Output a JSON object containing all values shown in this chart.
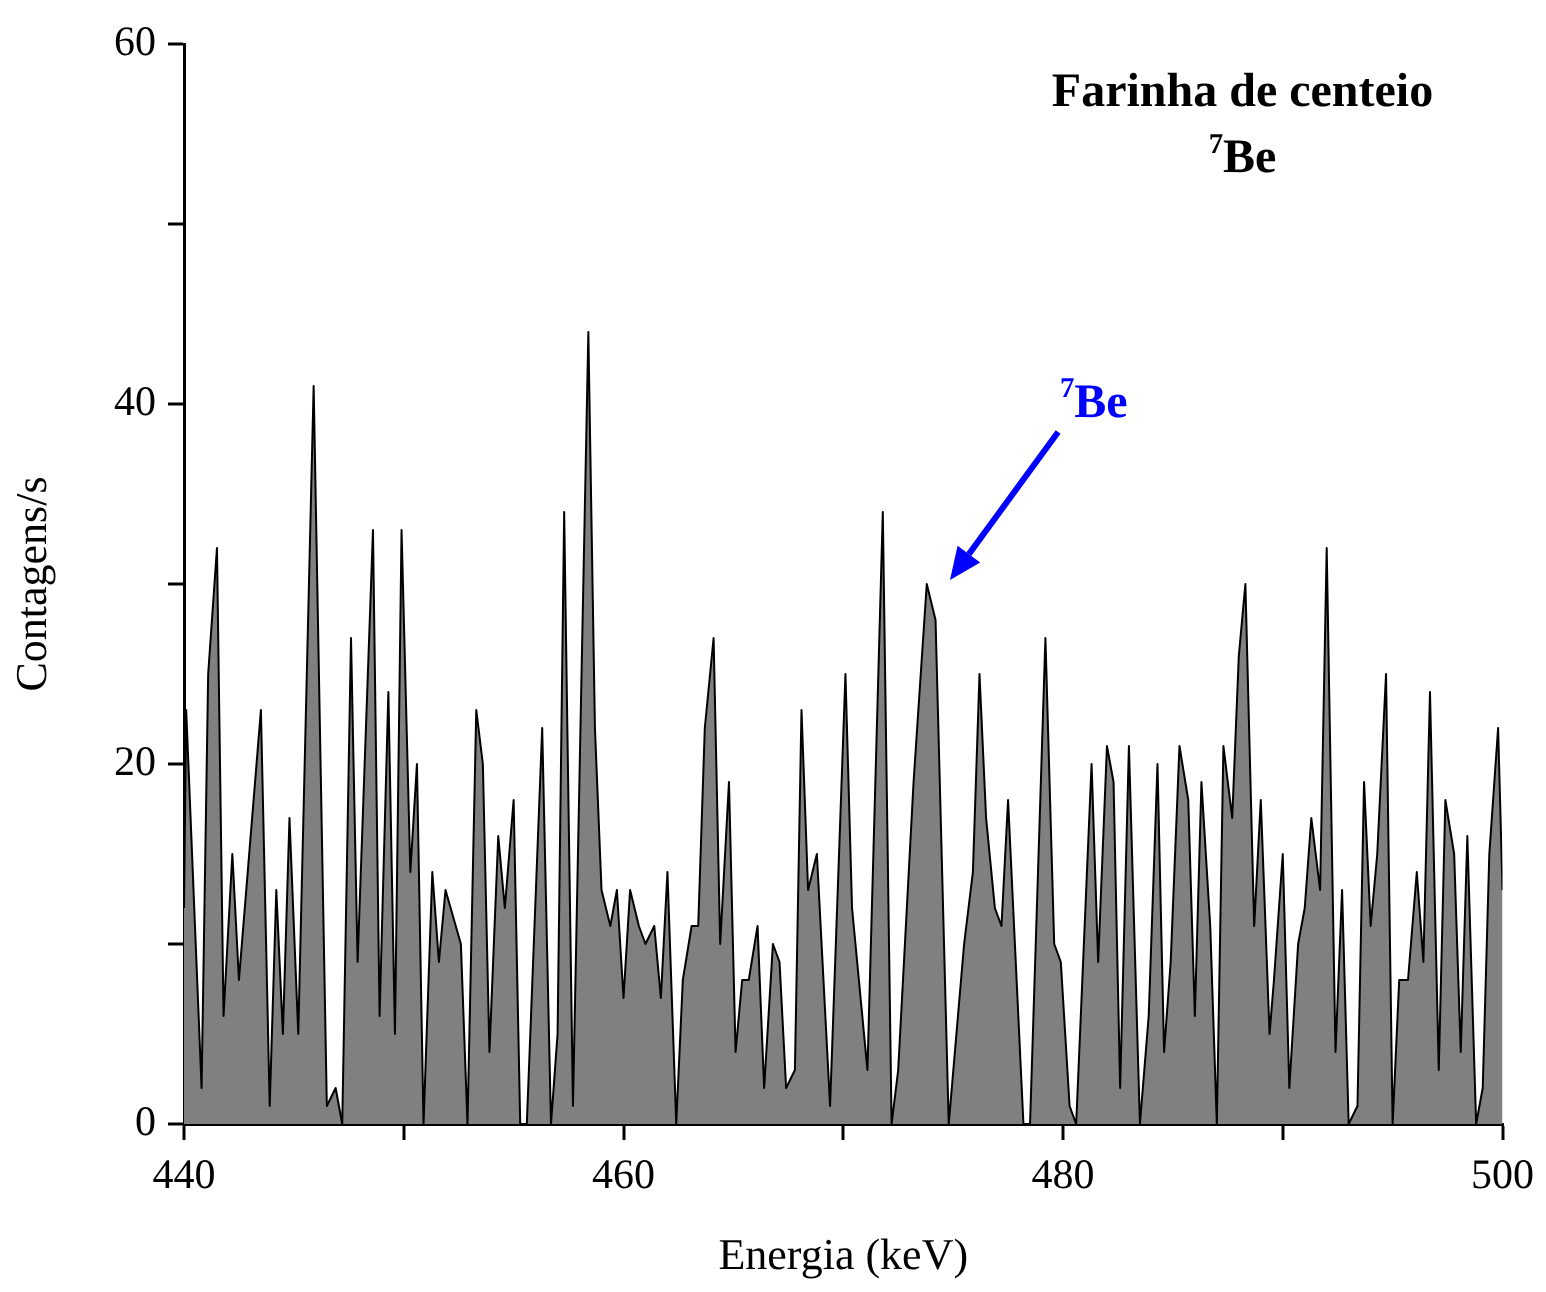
{
  "chart_data": {
    "type": "area",
    "title": "Farinha de centeio",
    "subtitle": "$^{7}$Be",
    "xlabel": "Energia (keV)",
    "ylabel": "Contagens/s",
    "x": [
      440.0,
      440.1,
      440.8,
      441.1,
      441.5,
      441.8,
      442.2,
      442.5,
      443.5,
      443.9,
      444.2,
      444.5,
      444.8,
      445.2,
      445.9,
      446.5,
      446.9,
      447.2,
      447.6,
      447.9,
      448.6,
      448.9,
      449.3,
      449.6,
      449.9,
      450.3,
      450.6,
      450.9,
      451.3,
      451.6,
      451.9,
      452.6,
      452.9,
      453.3,
      453.6,
      453.9,
      454.3,
      454.6,
      455.0,
      455.3,
      455.6,
      456.3,
      456.7,
      457.0,
      457.3,
      457.7,
      458.4,
      458.7,
      459.0,
      459.4,
      459.7,
      460.0,
      460.3,
      460.7,
      461.0,
      461.4,
      461.7,
      462.0,
      462.4,
      462.7,
      463.1,
      463.4,
      463.7,
      464.1,
      464.4,
      464.8,
      465.1,
      465.4,
      465.7,
      466.1,
      466.4,
      466.8,
      467.1,
      467.4,
      467.8,
      468.1,
      468.4,
      468.8,
      469.4,
      470.1,
      470.4,
      471.1,
      471.8,
      472.2,
      472.5,
      473.2,
      473.8,
      474.2,
      474.8,
      475.5,
      475.9,
      476.2,
      476.5,
      476.9,
      477.2,
      477.5,
      478.2,
      478.5,
      479.2,
      479.6,
      479.9,
      480.3,
      480.6,
      481.3,
      481.6,
      482.0,
      482.3,
      482.6,
      483.0,
      483.5,
      483.9,
      484.3,
      484.6,
      484.9,
      485.3,
      485.7,
      486.0,
      486.3,
      486.7,
      487.0,
      487.3,
      487.7,
      488.0,
      488.3,
      488.7,
      489.0,
      489.4,
      489.6,
      490.0,
      490.3,
      490.7,
      491.0,
      491.3,
      491.7,
      492.0,
      492.4,
      492.7,
      493.0,
      493.4,
      493.7,
      494.0,
      494.3,
      494.7,
      495.0,
      495.3,
      495.7,
      496.1,
      496.4,
      496.7,
      497.1,
      497.4,
      497.8,
      498.1,
      498.4,
      498.8,
      499.1,
      499.4,
      499.8,
      500.0
    ],
    "series": [
      {
        "color": "#808080",
        "values": [
          12,
          23,
          2,
          25,
          32,
          6,
          15,
          8,
          23,
          1,
          13,
          5,
          17,
          5,
          41,
          1,
          2,
          0,
          27,
          9,
          33,
          6,
          24,
          5,
          33,
          14,
          20,
          0,
          14,
          9,
          13,
          10,
          0,
          23,
          20,
          4,
          16,
          12,
          18,
          0,
          0,
          22,
          0,
          5,
          34,
          1,
          44,
          22,
          13,
          11,
          13,
          7,
          13,
          11,
          10,
          11,
          7,
          14,
          0,
          8,
          11,
          11,
          22,
          27,
          10,
          19,
          4,
          8,
          8,
          11,
          2,
          10,
          9,
          2,
          3,
          23,
          13,
          15,
          1,
          25,
          12,
          3,
          34,
          0,
          3,
          19,
          30,
          28,
          0,
          10,
          14,
          25,
          17,
          12,
          11,
          18,
          0,
          0,
          27,
          10,
          9,
          1,
          0,
          20,
          9,
          21,
          19,
          2,
          21,
          0,
          6,
          20,
          4,
          9,
          21,
          18,
          6,
          19,
          11,
          0,
          21,
          17,
          26,
          30,
          11,
          18,
          5,
          8,
          15,
          2,
          10,
          12,
          17,
          13,
          32,
          4,
          13,
          0,
          1,
          19,
          11,
          15,
          25,
          0,
          8,
          8,
          14,
          9,
          24,
          3,
          18,
          15,
          4,
          16,
          0,
          2,
          15,
          22,
          13
        ]
      }
    ],
    "xlim": [
      440,
      500
    ],
    "xticks": [
      440,
      {
        "value": 450,
        "label": null
      },
      460,
      {
        "value": 470,
        "label": null
      },
      480,
      {
        "value": 490,
        "label": null
      },
      500
    ],
    "ylim": [
      0,
      60
    ],
    "yticks": [
      0,
      {
        "value": 10,
        "label": null
      },
      20,
      {
        "value": 30,
        "label": null
      },
      40,
      {
        "value": 50,
        "label": null
      },
      60
    ],
    "marker": "none",
    "grid": false,
    "legend": false,
    "annotations": [
      "$^{7}$Be"
    ]
  }
}
